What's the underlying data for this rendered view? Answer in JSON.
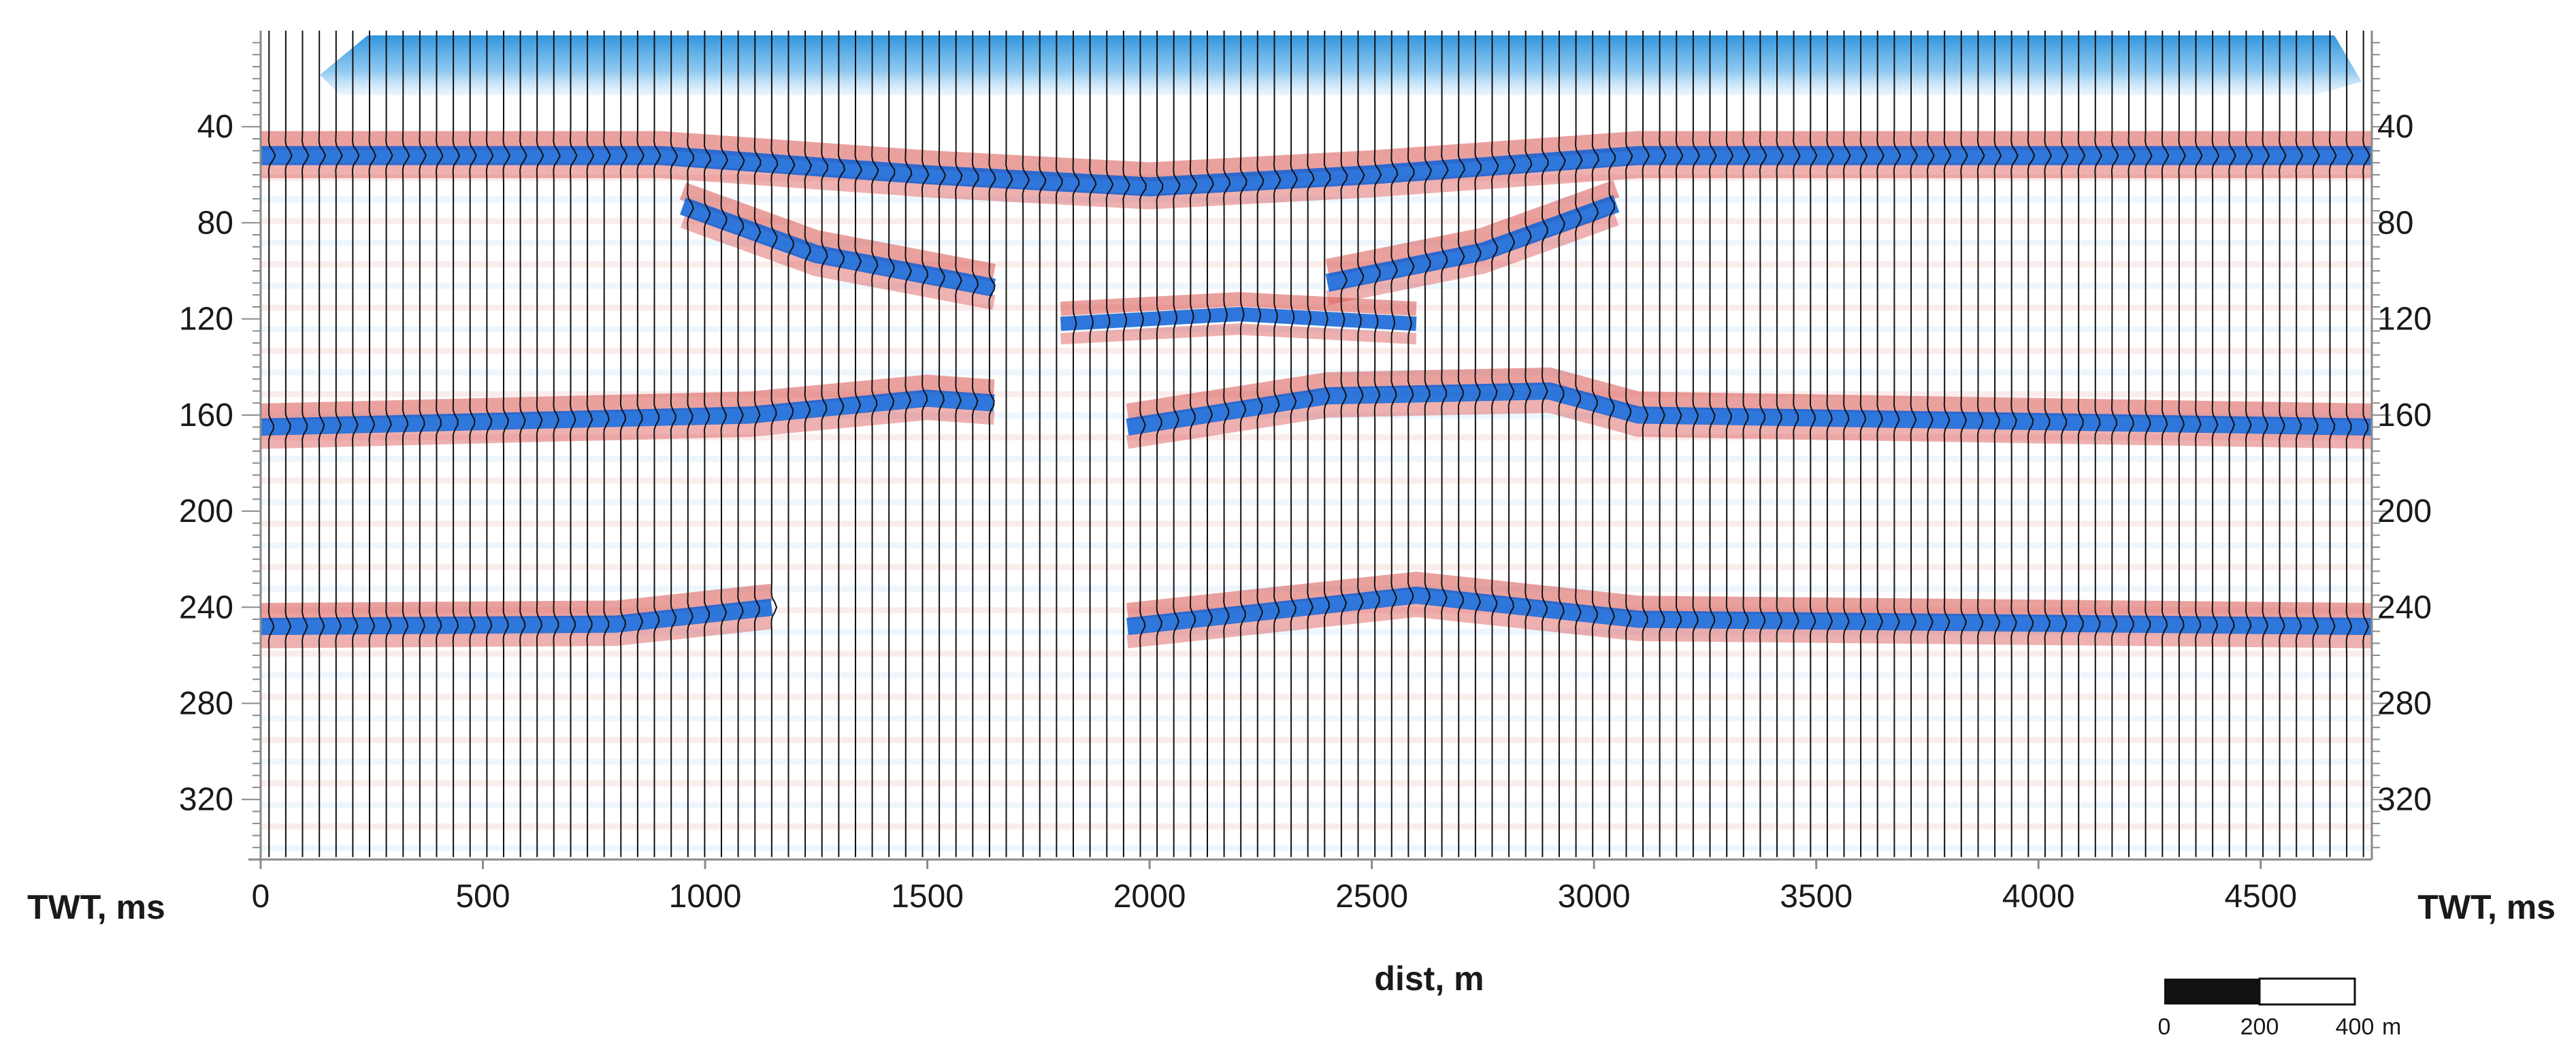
{
  "chart_data": {
    "type": "seismic-section",
    "xlabel": "dist, m",
    "ylabel_left": "TWT, ms",
    "ylabel_right": "TWT, ms",
    "x_range": [
      0,
      4750
    ],
    "y_range": [
      0,
      345
    ],
    "y_reversed": true,
    "x_ticks": [
      {
        "value": 0,
        "label": "0"
      },
      {
        "value": 500,
        "label": "500"
      },
      {
        "value": 1000,
        "label": "1000"
      },
      {
        "value": 1500,
        "label": "1500"
      },
      {
        "value": 2000,
        "label": "2000"
      },
      {
        "value": 2500,
        "label": "2500"
      },
      {
        "value": 3000,
        "label": "3000"
      },
      {
        "value": 3500,
        "label": "3500"
      },
      {
        "value": 4000,
        "label": "4000"
      },
      {
        "value": 4500,
        "label": "4500"
      }
    ],
    "y_ticks": [
      {
        "value": 40,
        "label": "40"
      },
      {
        "value": 80,
        "label": "80"
      },
      {
        "value": 120,
        "label": "120"
      },
      {
        "value": 160,
        "label": "160"
      },
      {
        "value": 200,
        "label": "200"
      },
      {
        "value": 240,
        "label": "240"
      },
      {
        "value": 280,
        "label": "280"
      },
      {
        "value": 320,
        "label": "320"
      }
    ],
    "colors": {
      "positive": "#d9534f",
      "negative": "#0a5fd6",
      "trace": "#111111"
    },
    "reflectors": [
      {
        "x": [
          0,
          900,
          1500,
          2000,
          2500,
          3100,
          4750
        ],
        "y": [
          52,
          52,
          60,
          65,
          60,
          52,
          52
        ],
        "amplitude": 1.0
      },
      {
        "x": [
          950,
          1250,
          1650
        ],
        "y": [
          73,
          93,
          107
        ],
        "amplitude": 0.9
      },
      {
        "x": [
          2400,
          2750,
          3050
        ],
        "y": [
          105,
          92,
          72
        ],
        "amplitude": 0.9
      },
      {
        "x": [
          1800,
          2200,
          2600
        ],
        "y": [
          122,
          118,
          122
        ],
        "amplitude": 0.5
      },
      {
        "x": [
          0,
          1100,
          1500,
          1650
        ],
        "y": [
          165,
          160,
          153,
          155
        ],
        "amplitude": 0.8
      },
      {
        "x": [
          1950,
          2400,
          2900,
          3100,
          4750
        ],
        "y": [
          165,
          152,
          150,
          160,
          165
        ],
        "amplitude": 0.8
      },
      {
        "x": [
          0,
          800,
          1150
        ],
        "y": [
          248,
          247,
          240
        ],
        "amplitude": 0.8
      },
      {
        "x": [
          1950,
          2600,
          3100,
          4750
        ],
        "y": [
          248,
          235,
          245,
          248
        ],
        "amplitude": 0.8
      }
    ],
    "scale_bar": {
      "ticks": [
        "0",
        "200",
        "400"
      ],
      "unit": "m"
    }
  }
}
